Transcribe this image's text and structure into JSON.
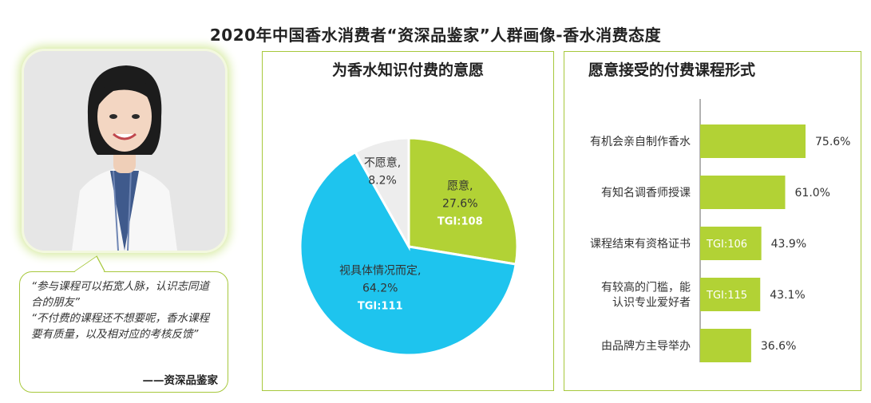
{
  "page": {
    "title": "2020年中国香水消费者“资深品鉴家”人群画像-香水消费态度"
  },
  "quote": {
    "line1": "“参与课程可以拓宽人脉，认识志同道合的朋友”",
    "line2": "“不付费的课程还不想要呢，香水课程要有质量，以及相对应的考核反馈”",
    "signature": "——资深品鉴家"
  },
  "colors": {
    "accent_green": "#a7c83c",
    "bar_green": "#b2d235",
    "pie_blue": "#1ec4ee",
    "pie_grey": "#ededed",
    "tgi_text": "#ffffff"
  },
  "chart_data": [
    {
      "type": "pie",
      "title": "为香水知识付费的意愿",
      "slices": [
        {
          "label": "愿意,",
          "value": 27.6,
          "value_label": "27.6%",
          "tgi": "TGI:108",
          "color": "#b2d235"
        },
        {
          "label": "视具体情况而定,",
          "value": 64.2,
          "value_label": "64.2%",
          "tgi": "TGI:111",
          "color": "#1ec4ee"
        },
        {
          "label": "不愿意,",
          "value": 8.2,
          "value_label": "8.2%",
          "tgi": "",
          "color": "#ededed"
        }
      ]
    },
    {
      "type": "bar",
      "orientation": "horizontal",
      "title": "愿意接受的付费课程形式",
      "categories": [
        [
          "有机会亲自制作香水"
        ],
        [
          "有知名调香师授课"
        ],
        [
          "课程结束有资格证书"
        ],
        [
          "有较高的门槛，能",
          "认识专业爱好者"
        ],
        [
          "由品牌方主导举办"
        ]
      ],
      "values": [
        75.6,
        61.0,
        43.9,
        43.1,
        36.6
      ],
      "value_labels": [
        "75.6%",
        "61.0%",
        "43.9%",
        "43.1%",
        "36.6%"
      ],
      "tgi": [
        "",
        "",
        "TGI:106",
        "TGI:115",
        ""
      ],
      "xlim": [
        0,
        100
      ]
    }
  ]
}
